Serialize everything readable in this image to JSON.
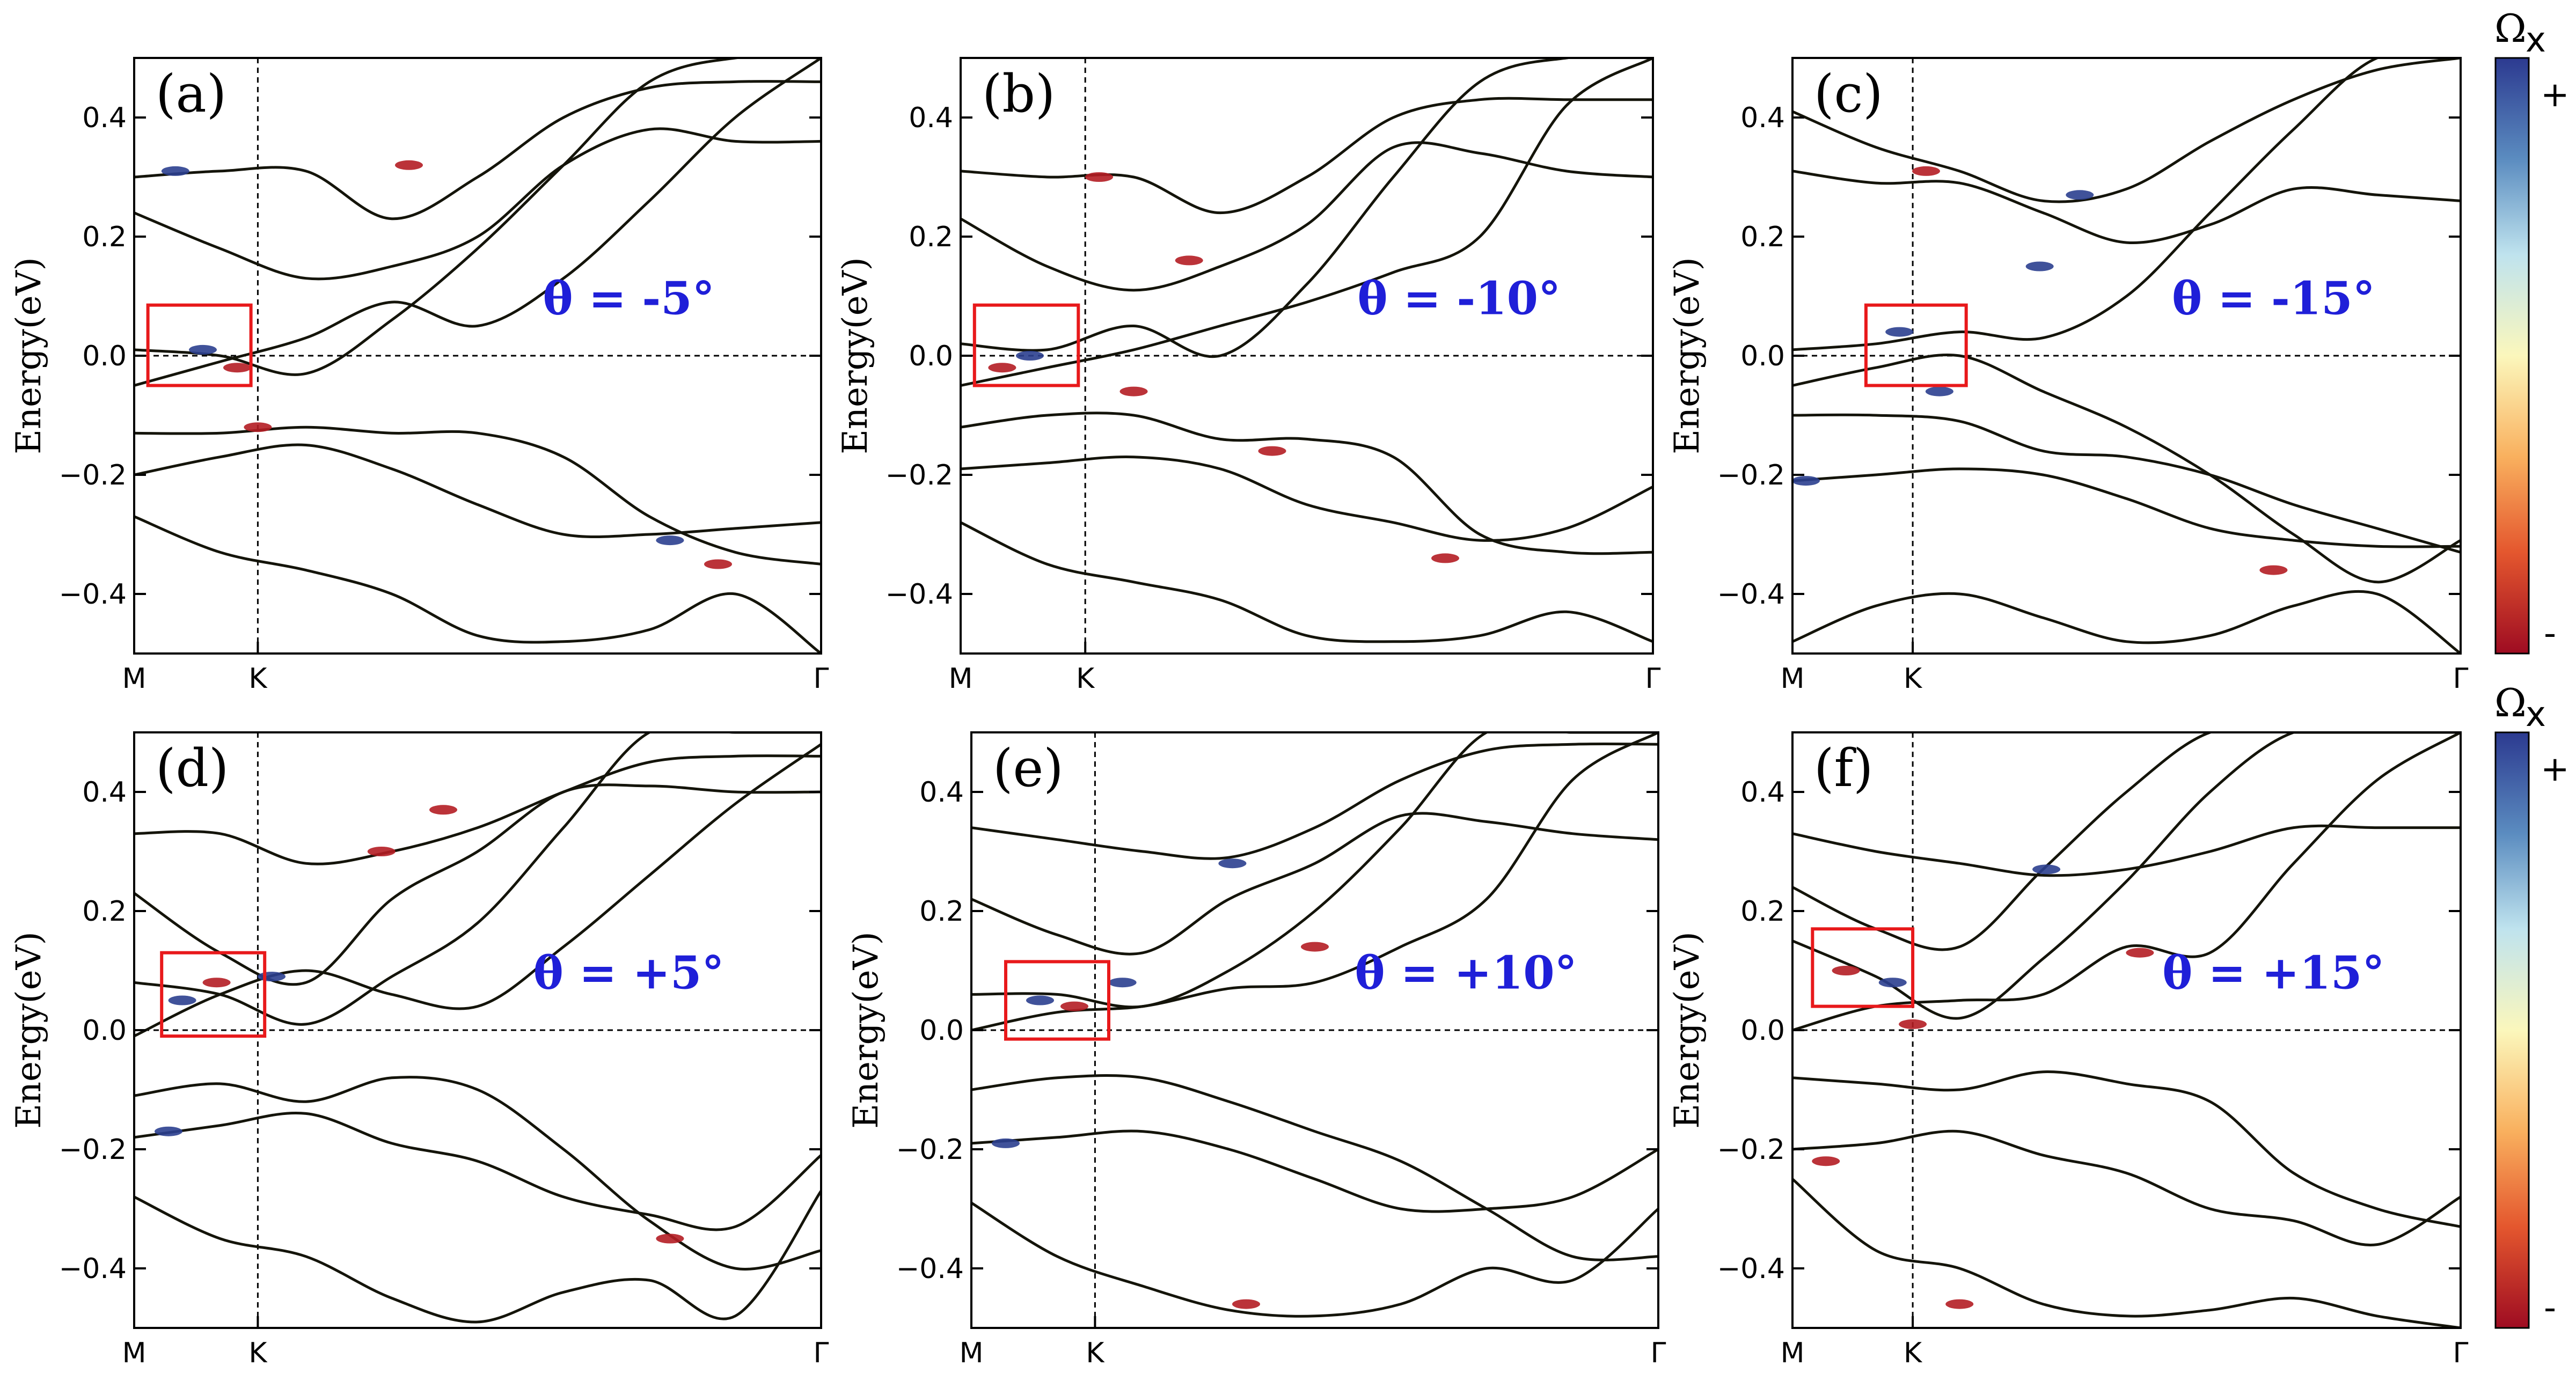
{
  "chart_data": [
    {
      "type": "line",
      "panel_label": "(a)",
      "theta_label": "θ = -5°",
      "ylabel": "Energy(eV)",
      "ylim": [
        -0.5,
        0.5
      ],
      "yticks": [
        "0.4",
        "0.2",
        "0.0",
        "−0.2",
        "−0.4"
      ],
      "xticks": [
        "M",
        "K",
        "Γ"
      ],
      "x_range": [
        0,
        1
      ],
      "k_position": 0.18,
      "bands": [
        [
          0.3,
          0.31,
          0.31,
          0.23,
          0.3,
          0.4,
          0.45,
          0.46,
          0.46
        ],
        [
          0.24,
          0.18,
          0.13,
          0.15,
          0.2,
          0.32,
          0.38,
          0.36,
          0.36
        ],
        [
          0.01,
          0.0,
          -0.03,
          0.06,
          0.18,
          0.32,
          0.46,
          0.5,
          0.5
        ],
        [
          -0.05,
          -0.01,
          0.03,
          0.09,
          0.05,
          0.13,
          0.26,
          0.4,
          0.5
        ],
        [
          -0.13,
          -0.13,
          -0.12,
          -0.13,
          -0.13,
          -0.17,
          -0.27,
          -0.33,
          -0.35
        ],
        [
          -0.2,
          -0.17,
          -0.15,
          -0.19,
          -0.25,
          -0.3,
          -0.3,
          -0.29,
          -0.28
        ],
        [
          -0.27,
          -0.33,
          -0.36,
          -0.4,
          -0.47,
          -0.48,
          -0.46,
          -0.4,
          -0.5
        ]
      ],
      "hotspots": [
        {
          "x": 0.1,
          "y": 0.01,
          "sign": "+"
        },
        {
          "x": 0.15,
          "y": -0.02,
          "sign": "-"
        },
        {
          "x": 0.06,
          "y": 0.31,
          "sign": "+"
        },
        {
          "x": 0.18,
          "y": -0.12,
          "sign": "-"
        },
        {
          "x": 0.4,
          "y": 0.32,
          "sign": "-"
        },
        {
          "x": 0.78,
          "y": -0.31,
          "sign": "+"
        },
        {
          "x": 0.85,
          "y": -0.35,
          "sign": "-"
        }
      ],
      "highlight_box": {
        "x0": 0.02,
        "x1": 0.17,
        "y0": -0.05,
        "y1": 0.085
      }
    },
    {
      "type": "line",
      "panel_label": "(b)",
      "theta_label": "θ = -10°",
      "ylabel": "Energy(eV)",
      "ylim": [
        -0.5,
        0.5
      ],
      "yticks": [
        "0.4",
        "0.2",
        "0.0",
        "−0.2",
        "−0.4"
      ],
      "xticks": [
        "M",
        "K",
        "Γ"
      ],
      "x_range": [
        0,
        1
      ],
      "k_position": 0.18,
      "bands": [
        [
          0.31,
          0.3,
          0.3,
          0.24,
          0.3,
          0.4,
          0.43,
          0.43,
          0.43
        ],
        [
          0.23,
          0.15,
          0.11,
          0.15,
          0.22,
          0.35,
          0.34,
          0.31,
          0.3
        ],
        [
          0.02,
          0.01,
          0.05,
          0.0,
          0.12,
          0.3,
          0.46,
          0.5,
          0.5
        ],
        [
          -0.05,
          -0.02,
          0.01,
          0.05,
          0.09,
          0.14,
          0.2,
          0.42,
          0.5
        ],
        [
          -0.12,
          -0.1,
          -0.1,
          -0.14,
          -0.14,
          -0.17,
          -0.3,
          -0.33,
          -0.33
        ],
        [
          -0.19,
          -0.18,
          -0.17,
          -0.19,
          -0.25,
          -0.28,
          -0.31,
          -0.29,
          -0.22
        ],
        [
          -0.28,
          -0.35,
          -0.38,
          -0.41,
          -0.47,
          -0.48,
          -0.47,
          -0.43,
          -0.48
        ]
      ],
      "hotspots": [
        {
          "x": 0.1,
          "y": 0.0,
          "sign": "+"
        },
        {
          "x": 0.06,
          "y": -0.02,
          "sign": "-"
        },
        {
          "x": 0.2,
          "y": 0.3,
          "sign": "-"
        },
        {
          "x": 0.33,
          "y": 0.16,
          "sign": "-"
        },
        {
          "x": 0.25,
          "y": -0.06,
          "sign": "-"
        },
        {
          "x": 0.45,
          "y": -0.16,
          "sign": "-"
        },
        {
          "x": 0.7,
          "y": -0.34,
          "sign": "-"
        }
      ],
      "highlight_box": {
        "x0": 0.02,
        "x1": 0.17,
        "y0": -0.05,
        "y1": 0.085
      }
    },
    {
      "type": "line",
      "panel_label": "(c)",
      "theta_label": "θ = -15°",
      "ylabel": "Energy(eV)",
      "ylim": [
        -0.5,
        0.5
      ],
      "yticks": [
        "0.4",
        "0.2",
        "0.0",
        "−0.2",
        "−0.4"
      ],
      "xticks": [
        "M",
        "K",
        "Γ"
      ],
      "x_range": [
        0,
        1
      ],
      "k_position": 0.18,
      "bands": [
        [
          0.41,
          0.35,
          0.31,
          0.26,
          0.28,
          0.36,
          0.43,
          0.48,
          0.5
        ],
        [
          0.31,
          0.29,
          0.29,
          0.24,
          0.19,
          0.22,
          0.28,
          0.27,
          0.26
        ],
        [
          0.01,
          0.02,
          0.04,
          0.03,
          0.1,
          0.24,
          0.38,
          0.5,
          0.5
        ],
        [
          -0.05,
          -0.02,
          0.0,
          -0.06,
          -0.12,
          -0.2,
          -0.3,
          -0.38,
          -0.31
        ],
        [
          -0.1,
          -0.1,
          -0.11,
          -0.16,
          -0.17,
          -0.2,
          -0.25,
          -0.29,
          -0.33
        ],
        [
          -0.21,
          -0.2,
          -0.19,
          -0.2,
          -0.24,
          -0.29,
          -0.31,
          -0.32,
          -0.32
        ],
        [
          -0.48,
          -0.42,
          -0.4,
          -0.44,
          -0.48,
          -0.47,
          -0.42,
          -0.4,
          -0.5
        ]
      ],
      "hotspots": [
        {
          "x": 0.16,
          "y": 0.04,
          "sign": "+"
        },
        {
          "x": 0.22,
          "y": -0.06,
          "sign": "+"
        },
        {
          "x": 0.2,
          "y": 0.31,
          "sign": "-"
        },
        {
          "x": 0.37,
          "y": 0.15,
          "sign": "+"
        },
        {
          "x": 0.43,
          "y": 0.27,
          "sign": "+"
        },
        {
          "x": 0.72,
          "y": -0.36,
          "sign": "-"
        },
        {
          "x": 0.02,
          "y": -0.21,
          "sign": "+"
        }
      ],
      "highlight_box": {
        "x0": 0.11,
        "x1": 0.26,
        "y0": -0.05,
        "y1": 0.085
      }
    },
    {
      "type": "line",
      "panel_label": "(d)",
      "theta_label": "θ = +5°",
      "ylabel": "Energy(eV)",
      "ylim": [
        -0.5,
        0.5
      ],
      "yticks": [
        "0.4",
        "0.2",
        "0.0",
        "−0.2",
        "−0.4"
      ],
      "xticks": [
        "M",
        "K",
        "Γ"
      ],
      "x_range": [
        0,
        1
      ],
      "k_position": 0.18,
      "bands": [
        [
          0.33,
          0.33,
          0.28,
          0.3,
          0.34,
          0.4,
          0.45,
          0.46,
          0.46
        ],
        [
          0.23,
          0.13,
          0.08,
          0.22,
          0.3,
          0.4,
          0.41,
          0.4,
          0.4
        ],
        [
          0.08,
          0.06,
          0.01,
          0.09,
          0.18,
          0.34,
          0.5,
          0.5,
          0.5
        ],
        [
          -0.01,
          0.06,
          0.1,
          0.06,
          0.04,
          0.14,
          0.26,
          0.38,
          0.48
        ],
        [
          -0.11,
          -0.09,
          -0.12,
          -0.08,
          -0.1,
          -0.2,
          -0.32,
          -0.4,
          -0.37
        ],
        [
          -0.18,
          -0.16,
          -0.14,
          -0.19,
          -0.22,
          -0.28,
          -0.31,
          -0.33,
          -0.21
        ],
        [
          -0.28,
          -0.35,
          -0.38,
          -0.45,
          -0.49,
          -0.44,
          -0.42,
          -0.48,
          -0.27
        ]
      ],
      "hotspots": [
        {
          "x": 0.07,
          "y": 0.05,
          "sign": "+"
        },
        {
          "x": 0.12,
          "y": 0.08,
          "sign": "-"
        },
        {
          "x": 0.2,
          "y": 0.09,
          "sign": "+"
        },
        {
          "x": 0.36,
          "y": 0.3,
          "sign": "-"
        },
        {
          "x": 0.45,
          "y": 0.37,
          "sign": "-"
        },
        {
          "x": 0.05,
          "y": -0.17,
          "sign": "+"
        },
        {
          "x": 0.78,
          "y": -0.35,
          "sign": "-"
        }
      ],
      "highlight_box": {
        "x0": 0.04,
        "x1": 0.19,
        "y0": -0.01,
        "y1": 0.13
      }
    },
    {
      "type": "line",
      "panel_label": "(e)",
      "theta_label": "θ = +10°",
      "ylabel": "Energy(eV)",
      "ylim": [
        -0.5,
        0.5
      ],
      "yticks": [
        "0.4",
        "0.2",
        "0.0",
        "−0.2",
        "−0.4"
      ],
      "xticks": [
        "M",
        "K",
        "Γ"
      ],
      "x_range": [
        0,
        1
      ],
      "k_position": 0.18,
      "bands": [
        [
          0.34,
          0.32,
          0.3,
          0.29,
          0.34,
          0.42,
          0.47,
          0.48,
          0.48
        ],
        [
          0.22,
          0.16,
          0.13,
          0.22,
          0.28,
          0.36,
          0.35,
          0.33,
          0.32
        ],
        [
          0.06,
          0.06,
          0.04,
          0.1,
          0.2,
          0.34,
          0.5,
          0.5,
          0.5
        ],
        [
          0.0,
          0.03,
          0.04,
          0.07,
          0.08,
          0.14,
          0.22,
          0.42,
          0.5
        ],
        [
          -0.1,
          -0.08,
          -0.08,
          -0.12,
          -0.17,
          -0.22,
          -0.3,
          -0.38,
          -0.38
        ],
        [
          -0.19,
          -0.18,
          -0.17,
          -0.2,
          -0.25,
          -0.3,
          -0.3,
          -0.28,
          -0.2
        ],
        [
          -0.29,
          -0.38,
          -0.43,
          -0.47,
          -0.48,
          -0.46,
          -0.4,
          -0.42,
          -0.3
        ]
      ],
      "hotspots": [
        {
          "x": 0.1,
          "y": 0.05,
          "sign": "+"
        },
        {
          "x": 0.15,
          "y": 0.04,
          "sign": "-"
        },
        {
          "x": 0.22,
          "y": 0.08,
          "sign": "+"
        },
        {
          "x": 0.38,
          "y": 0.28,
          "sign": "+"
        },
        {
          "x": 0.5,
          "y": 0.14,
          "sign": "-"
        },
        {
          "x": 0.05,
          "y": -0.19,
          "sign": "+"
        },
        {
          "x": 0.4,
          "y": -0.46,
          "sign": "-"
        }
      ],
      "highlight_box": {
        "x0": 0.05,
        "x1": 0.2,
        "y0": -0.015,
        "y1": 0.115
      }
    },
    {
      "type": "line",
      "panel_label": "(f)",
      "theta_label": "θ = +15°",
      "ylabel": "Energy(eV)",
      "ylim": [
        -0.5,
        0.5
      ],
      "yticks": [
        "0.4",
        "0.2",
        "0.0",
        "−0.2",
        "−0.4"
      ],
      "xticks": [
        "M",
        "K",
        "Γ"
      ],
      "x_range": [
        0,
        1
      ],
      "k_position": 0.18,
      "bands": [
        [
          0.33,
          0.3,
          0.28,
          0.26,
          0.27,
          0.3,
          0.34,
          0.34,
          0.34
        ],
        [
          0.24,
          0.17,
          0.14,
          0.27,
          0.4,
          0.5,
          0.5,
          0.5,
          0.5
        ],
        [
          0.15,
          0.09,
          0.02,
          0.12,
          0.25,
          0.4,
          0.5,
          0.5,
          0.5
        ],
        [
          0.0,
          0.04,
          0.05,
          0.06,
          0.14,
          0.13,
          0.28,
          0.42,
          0.5
        ],
        [
          -0.08,
          -0.09,
          -0.1,
          -0.07,
          -0.09,
          -0.12,
          -0.24,
          -0.3,
          -0.33
        ],
        [
          -0.2,
          -0.19,
          -0.17,
          -0.21,
          -0.24,
          -0.3,
          -0.32,
          -0.36,
          -0.28
        ],
        [
          -0.25,
          -0.37,
          -0.4,
          -0.46,
          -0.48,
          -0.47,
          -0.45,
          -0.48,
          -0.5
        ]
      ],
      "hotspots": [
        {
          "x": 0.08,
          "y": 0.1,
          "sign": "-"
        },
        {
          "x": 0.15,
          "y": 0.08,
          "sign": "+"
        },
        {
          "x": 0.18,
          "y": 0.01,
          "sign": "-"
        },
        {
          "x": 0.38,
          "y": 0.27,
          "sign": "+"
        },
        {
          "x": 0.52,
          "y": 0.13,
          "sign": "-"
        },
        {
          "x": 0.05,
          "y": -0.22,
          "sign": "-"
        },
        {
          "x": 0.25,
          "y": -0.46,
          "sign": "-"
        }
      ],
      "highlight_box": {
        "x0": 0.03,
        "x1": 0.18,
        "y0": 0.04,
        "y1": 0.17
      }
    }
  ],
  "colorbars": [
    {
      "title": "Ω",
      "subscript": "x",
      "plus_label": "+",
      "minus_label": "-"
    },
    {
      "title": "Ω",
      "subscript": "x",
      "plus_label": "+",
      "minus_label": "-"
    }
  ],
  "colors": {
    "band_line": "#14140a",
    "positive": "#2b3f8f",
    "negative": "#b41d24",
    "highlight_box": "#e8191b",
    "theta_text": "#1f1fd8",
    "colormap": [
      "#2c3a90",
      "#5b8cc0",
      "#bfe3ee",
      "#fbf7bc",
      "#f9b05e",
      "#e4572e",
      "#9e0c22"
    ]
  }
}
